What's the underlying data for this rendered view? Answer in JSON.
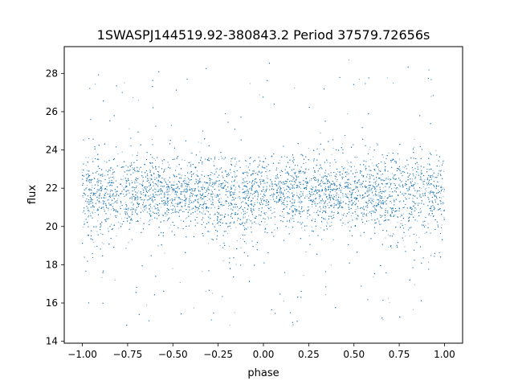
{
  "chart_data": {
    "type": "scatter",
    "title": "1SWASPJ144519.92-380843.2 Period 37579.72656s",
    "xlabel": "phase",
    "ylabel": "flux",
    "xlim": [
      -1.1,
      1.1
    ],
    "ylim": [
      13.9,
      29.4
    ],
    "x_ticks": [
      -1.0,
      -0.75,
      -0.5,
      -0.25,
      0.0,
      0.25,
      0.5,
      0.75,
      1.0
    ],
    "x_tick_labels": [
      "−1.00",
      "−0.75",
      "−0.50",
      "−0.25",
      "0.00",
      "0.25",
      "0.50",
      "0.75",
      "1.00"
    ],
    "y_ticks": [
      14,
      16,
      18,
      20,
      22,
      24,
      26,
      28
    ],
    "y_tick_labels": [
      "14",
      "16",
      "18",
      "20",
      "22",
      "24",
      "26",
      "28"
    ],
    "grid": false,
    "marker_color": "#1f77b4",
    "phase_range": [
      -1.0,
      1.0
    ],
    "baseline_flux": 21.8,
    "band_flux_range": [
      19.5,
      24.0
    ],
    "outlier_flux_range": [
      14.7,
      28.7
    ],
    "eclipses": [
      {
        "phase": -0.95,
        "min_flux": 17.8
      },
      {
        "phase": -0.12,
        "min_flux": 17.3
      },
      {
        "phase": 0.85,
        "min_flux": 17.5
      }
    ]
  }
}
